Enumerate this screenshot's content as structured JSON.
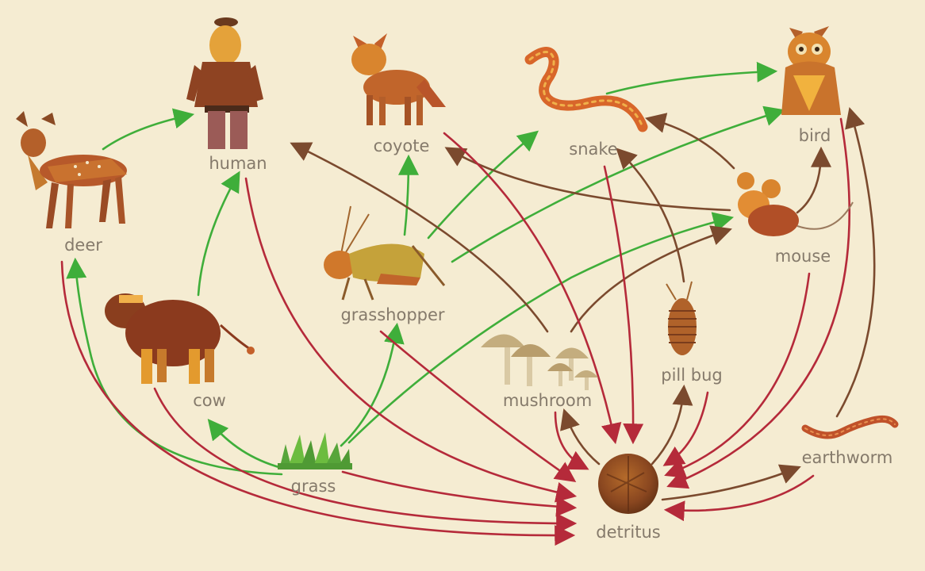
{
  "diagram": {
    "colors": {
      "background": "#f5ecd2",
      "energy_green": "#3fae3a",
      "decomposer_brown": "#7b4a2e",
      "to_detritus_red": "#b52a3a",
      "label": "#857a6b"
    },
    "nodes": {
      "deer": "deer",
      "human": "human",
      "coyote": "coyote",
      "snake": "snake",
      "bird": "bird",
      "mouse": "mouse",
      "grasshopper": "grasshopper",
      "cow": "cow",
      "mushroom": "mushroom",
      "pill_bug": "pill bug",
      "grass": "grass",
      "detritus": "detritus",
      "earthworm": "earthworm"
    },
    "edges": [
      {
        "from": "deer",
        "to": "human",
        "kind": "green"
      },
      {
        "from": "cow",
        "to": "human",
        "kind": "green"
      },
      {
        "from": "grass",
        "to": "deer",
        "kind": "green"
      },
      {
        "from": "grass",
        "to": "cow",
        "kind": "green"
      },
      {
        "from": "grass",
        "to": "grasshopper",
        "kind": "green"
      },
      {
        "from": "grass",
        "to": "mouse",
        "kind": "green"
      },
      {
        "from": "grasshopper",
        "to": "coyote",
        "kind": "green"
      },
      {
        "from": "grasshopper",
        "to": "snake",
        "kind": "green"
      },
      {
        "from": "grasshopper",
        "to": "bird",
        "kind": "green"
      },
      {
        "from": "snake",
        "to": "bird",
        "kind": "green"
      },
      {
        "from": "mushroom",
        "to": "human",
        "kind": "brown"
      },
      {
        "from": "mouse",
        "to": "coyote",
        "kind": "brown"
      },
      {
        "from": "mouse",
        "to": "snake",
        "kind": "brown"
      },
      {
        "from": "mouse",
        "to": "bird",
        "kind": "brown"
      },
      {
        "from": "mushroom",
        "to": "mouse",
        "kind": "brown"
      },
      {
        "from": "pill_bug",
        "to": "snake",
        "kind": "brown"
      },
      {
        "from": "earthworm",
        "to": "bird",
        "kind": "brown"
      },
      {
        "from": "detritus",
        "to": "mushroom",
        "kind": "brown"
      },
      {
        "from": "detritus",
        "to": "pill_bug",
        "kind": "brown"
      },
      {
        "from": "detritus",
        "to": "earthworm",
        "kind": "brown"
      },
      {
        "from": "deer",
        "to": "detritus",
        "kind": "red"
      },
      {
        "from": "cow",
        "to": "detritus",
        "kind": "red"
      },
      {
        "from": "human",
        "to": "detritus",
        "kind": "red"
      },
      {
        "from": "grass",
        "to": "detritus",
        "kind": "red"
      },
      {
        "from": "grasshopper",
        "to": "detritus",
        "kind": "red"
      },
      {
        "from": "coyote",
        "to": "detritus",
        "kind": "red"
      },
      {
        "from": "snake",
        "to": "detritus",
        "kind": "red"
      },
      {
        "from": "mushroom",
        "to": "detritus",
        "kind": "red"
      },
      {
        "from": "pill_bug",
        "to": "detritus",
        "kind": "red"
      },
      {
        "from": "mouse",
        "to": "detritus",
        "kind": "red"
      },
      {
        "from": "bird",
        "to": "detritus",
        "kind": "red"
      },
      {
        "from": "earthworm",
        "to": "detritus",
        "kind": "red"
      }
    ]
  }
}
